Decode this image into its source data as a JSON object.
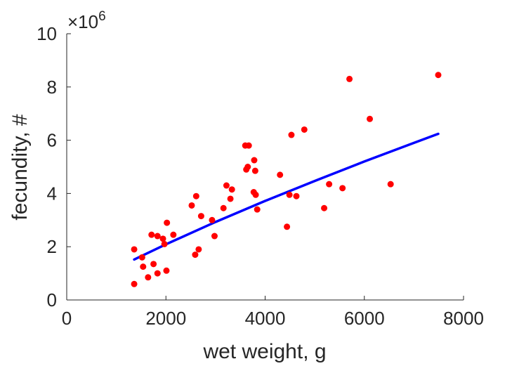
{
  "chart_data": {
    "type": "scatter",
    "title": "",
    "xlabel": "wet weight, g",
    "ylabel": "fecundity, #",
    "y_exponent_label": "×10",
    "y_exponent_power": "6",
    "xlim": [
      0,
      8000
    ],
    "ylim": [
      0,
      10
    ],
    "y_scale": 1000000,
    "x_ticks": [
      0,
      2000,
      4000,
      6000,
      8000
    ],
    "y_ticks": [
      0,
      2,
      4,
      6,
      8,
      10
    ],
    "x_tick_labels": [
      "0",
      "2000",
      "4000",
      "6000",
      "8000"
    ],
    "y_tick_labels": [
      "0",
      "2",
      "4",
      "6",
      "8",
      "10"
    ],
    "grid": false,
    "legend": "none",
    "colors": {
      "points": "#ff0000",
      "fit": "#0000ff",
      "axis": "#262626"
    },
    "series": [
      {
        "type": "scatter",
        "points": [
          [
            1360,
            1.9
          ],
          [
            1360,
            0.6
          ],
          [
            1520,
            1.6
          ],
          [
            1540,
            1.25
          ],
          [
            1640,
            0.85
          ],
          [
            1710,
            2.45
          ],
          [
            1750,
            1.35
          ],
          [
            1830,
            1.0
          ],
          [
            1830,
            2.4
          ],
          [
            1940,
            2.3
          ],
          [
            1970,
            2.1
          ],
          [
            2010,
            1.1
          ],
          [
            2020,
            2.9
          ],
          [
            2150,
            2.45
          ],
          [
            2520,
            3.55
          ],
          [
            2590,
            1.7
          ],
          [
            2610,
            3.9
          ],
          [
            2660,
            1.9
          ],
          [
            2710,
            3.15
          ],
          [
            2930,
            3.0
          ],
          [
            2980,
            2.4
          ],
          [
            3160,
            3.45
          ],
          [
            3220,
            4.3
          ],
          [
            3300,
            3.8
          ],
          [
            3330,
            4.15
          ],
          [
            3600,
            5.8
          ],
          [
            3620,
            4.9
          ],
          [
            3650,
            5.0
          ],
          [
            3670,
            5.8
          ],
          [
            3770,
            4.05
          ],
          [
            3780,
            5.25
          ],
          [
            3800,
            4.85
          ],
          [
            3810,
            3.95
          ],
          [
            3840,
            3.4
          ],
          [
            4300,
            4.7
          ],
          [
            4440,
            2.75
          ],
          [
            4490,
            3.95
          ],
          [
            4530,
            6.2
          ],
          [
            4630,
            3.9
          ],
          [
            4790,
            6.4
          ],
          [
            5190,
            3.45
          ],
          [
            5290,
            4.35
          ],
          [
            5560,
            4.2
          ],
          [
            5700,
            8.3
          ],
          [
            6110,
            6.8
          ],
          [
            6530,
            4.35
          ],
          [
            7490,
            8.45
          ]
        ]
      },
      {
        "type": "line",
        "name": "",
        "x": [
          1360,
          2000,
          3000,
          4000,
          5000,
          6000,
          7000,
          7490
        ],
        "y": [
          1.52,
          2.09,
          2.93,
          3.72,
          4.47,
          5.2,
          5.9,
          6.24
        ]
      }
    ]
  }
}
